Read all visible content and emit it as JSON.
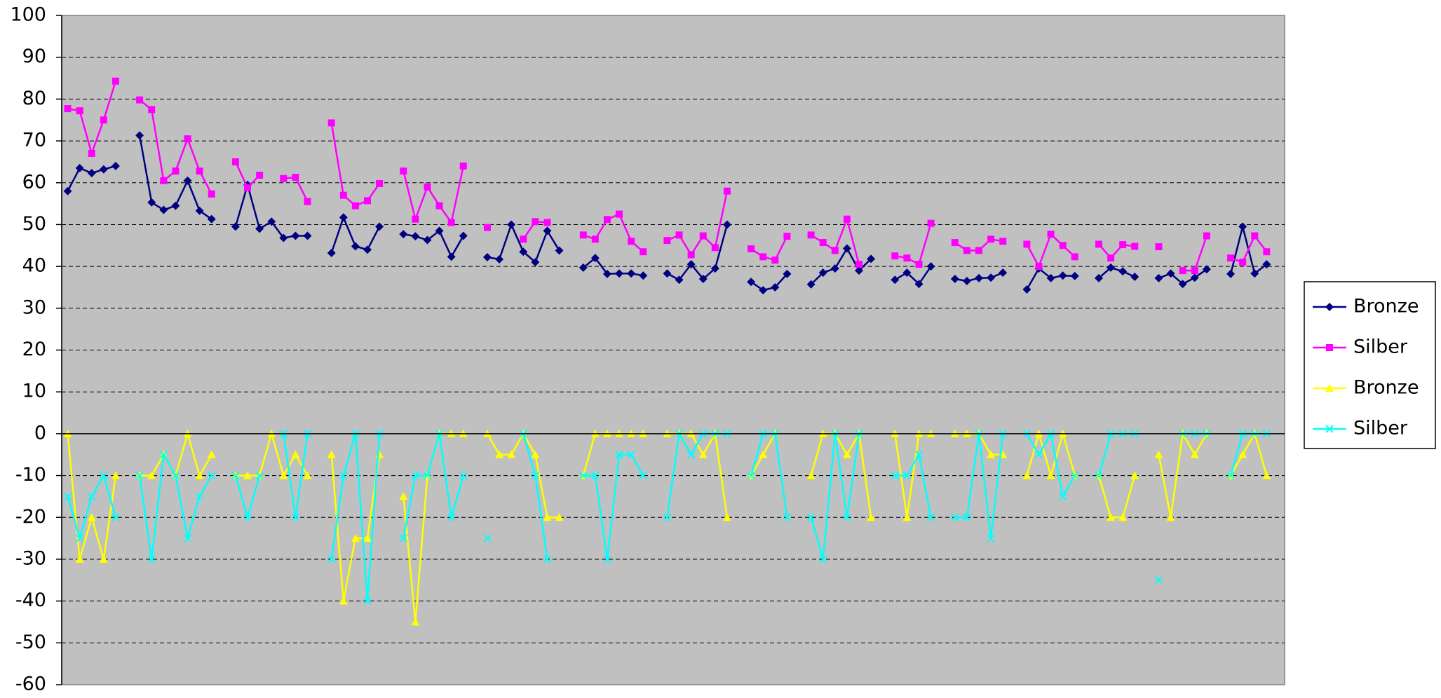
{
  "chart_data": {
    "type": "line",
    "categories": [
      null,
      null,
      null,
      null,
      null,
      null,
      null,
      null,
      null,
      null,
      null,
      null,
      null,
      null,
      null,
      null,
      null,
      null,
      null,
      null,
      null,
      null,
      null,
      null,
      null,
      null,
      null,
      null,
      null,
      null,
      null,
      null,
      null,
      null,
      null,
      null,
      null,
      null,
      null,
      null,
      null,
      null,
      null,
      null,
      null,
      null,
      null,
      null,
      null,
      null,
      null,
      null,
      null,
      null,
      null,
      null,
      null,
      null,
      null,
      null,
      null,
      null,
      null,
      null,
      null,
      null,
      null,
      null,
      null,
      null,
      null,
      null,
      null,
      null,
      null,
      null,
      null,
      null,
      null,
      null,
      null,
      null,
      null,
      null,
      null,
      null,
      null,
      null,
      null,
      null,
      null,
      null,
      null,
      null,
      null,
      null,
      null,
      null,
      null,
      null,
      null,
      null
    ],
    "ylim": [
      -60,
      100
    ],
    "yticks": [
      -60,
      -50,
      -40,
      -30,
      -20,
      -10,
      0,
      10,
      20,
      30,
      40,
      50,
      60,
      70,
      80,
      90,
      100
    ],
    "grid": true,
    "legend": "right",
    "series": [
      {
        "name": "Bronze",
        "color": "#000080",
        "marker": "diamond",
        "values": [
          58,
          63.5,
          62.3,
          63.2,
          64,
          null,
          71.3,
          55.3,
          53.5,
          54.5,
          60.5,
          53.3,
          51.3,
          null,
          49.5,
          59.5,
          49,
          50.7,
          46.8,
          47.3,
          47.3,
          null,
          43.2,
          51.7,
          44.8,
          44,
          49.5,
          null,
          47.7,
          47.2,
          46.3,
          48.5,
          42.3,
          47.3,
          null,
          42.2,
          41.7,
          50,
          43.5,
          41,
          48.5,
          43.8,
          null,
          39.7,
          42,
          38.2,
          38.3,
          38.3,
          37.8,
          null,
          38.3,
          36.8,
          40.5,
          37,
          39.5,
          50,
          null,
          36.3,
          34.3,
          35,
          38.2,
          null,
          35.7,
          38.5,
          39.5,
          44.3,
          39,
          41.8,
          null,
          36.8,
          38.5,
          35.8,
          40,
          null,
          37,
          36.5,
          37.2,
          37.3,
          38.5,
          null,
          34.5,
          39.5,
          37.2,
          37.8,
          37.7,
          null,
          37.2,
          39.7,
          38.8,
          37.5,
          null,
          37.2,
          38.3,
          35.8,
          37.3,
          39.3,
          null,
          38.2,
          49.5,
          38.3,
          40.5,
          null
        ]
      },
      {
        "name": "Silber",
        "color": "#FF00FF",
        "marker": "square",
        "values": [
          77.7,
          77.2,
          67,
          75,
          84.3,
          null,
          79.8,
          77.5,
          60.5,
          62.8,
          70.5,
          62.8,
          57.3,
          null,
          65,
          58.8,
          61.8,
          null,
          61,
          61.3,
          55.5,
          null,
          74.3,
          57,
          54.5,
          55.7,
          59.8,
          null,
          62.8,
          51.3,
          59,
          54.5,
          50.5,
          64,
          null,
          49.3,
          null,
          null,
          46.5,
          50.7,
          50.5,
          null,
          null,
          47.5,
          46.5,
          51.2,
          52.5,
          46,
          43.5,
          null,
          46.2,
          47.5,
          42.8,
          47.3,
          44.5,
          58,
          null,
          44.2,
          42.3,
          41.5,
          47.2,
          null,
          47.5,
          45.7,
          43.8,
          51.3,
          40.5,
          null,
          null,
          42.5,
          42,
          40.5,
          50.3,
          null,
          45.7,
          43.8,
          43.8,
          46.5,
          46,
          null,
          45.3,
          40,
          47.7,
          45,
          42.3,
          null,
          45.3,
          42,
          45.2,
          44.8,
          null,
          44.7,
          null,
          39,
          39,
          47.3,
          null,
          42,
          41,
          47.3,
          43.5,
          null
        ]
      },
      {
        "name": "Bronze",
        "color": "#FFFF00",
        "marker": "triangle",
        "values": [
          0,
          -30,
          -20,
          -30,
          -10,
          null,
          -10,
          -10,
          -5,
          -10,
          0,
          -10,
          -5,
          null,
          -10,
          -10,
          -10,
          0,
          -10,
          -5,
          -10,
          null,
          -5,
          -40,
          -25,
          -25,
          -5,
          null,
          -15,
          -45,
          -10,
          0,
          0,
          0,
          null,
          0,
          -5,
          -5,
          0,
          -5,
          -20,
          -20,
          null,
          -10,
          0,
          0,
          0,
          0,
          0,
          null,
          0,
          0,
          0,
          -5,
          0,
          -20,
          null,
          -10,
          -5,
          0,
          null,
          null,
          -10,
          0,
          0,
          -5,
          0,
          -20,
          null,
          0,
          -20,
          0,
          0,
          null,
          0,
          0,
          0,
          -5,
          -5,
          null,
          -10,
          0,
          -10,
          0,
          -10,
          null,
          -10,
          -20,
          -20,
          -10,
          null,
          -5,
          -20,
          0,
          -5,
          0,
          null,
          -10,
          -5,
          0,
          -10,
          null
        ]
      },
      {
        "name": "Silber",
        "color": "#00FFFF",
        "marker": "x",
        "values": [
          -15,
          -25,
          -15,
          -10,
          -20,
          null,
          -10,
          -30,
          -5,
          -10,
          -25,
          -15,
          -10,
          null,
          -10,
          -20,
          -10,
          null,
          0,
          -20,
          0,
          null,
          -30,
          -10,
          0,
          -40,
          0,
          null,
          -25,
          -10,
          -10,
          0,
          -20,
          -10,
          null,
          -25,
          null,
          null,
          0,
          -10,
          -30,
          null,
          null,
          -10,
          -10,
          -30,
          -5,
          -5,
          -10,
          null,
          -20,
          0,
          -5,
          0,
          0,
          0,
          null,
          -10,
          0,
          0,
          -20,
          null,
          -20,
          -30,
          0,
          -20,
          0,
          null,
          null,
          -10,
          -10,
          -5,
          -20,
          null,
          -20,
          -20,
          0,
          -25,
          0,
          null,
          0,
          -5,
          0,
          -15,
          -10,
          null,
          -10,
          0,
          0,
          0,
          null,
          -35,
          null,
          0,
          0,
          0,
          null,
          -10,
          0,
          0,
          0,
          null
        ]
      }
    ]
  }
}
